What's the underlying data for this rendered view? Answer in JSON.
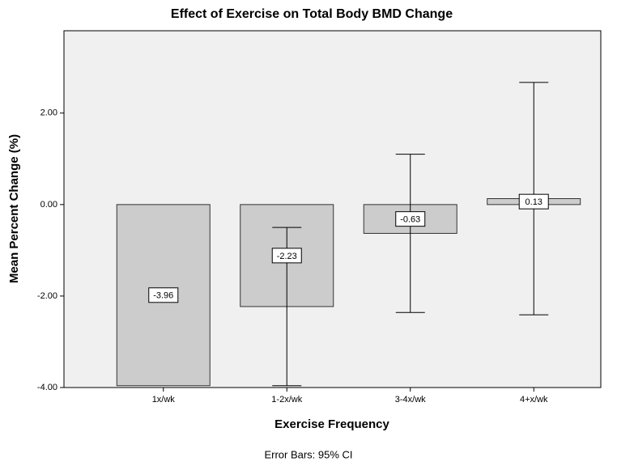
{
  "chart_data": {
    "type": "bar",
    "title": "Effect of Exercise on Total Body BMD Change",
    "x_label": "Exercise Frequency",
    "y_label": "Mean Percent Change (%)",
    "footnote": "Error Bars: 95% CI",
    "categories": [
      "1x/wk",
      "1-2x/wk",
      "3-4x/wk",
      "4+x/wk"
    ],
    "values": [
      -3.96,
      -2.23,
      -0.63,
      0.13
    ],
    "error_low": [
      null,
      -3.96,
      -2.36,
      -2.41
    ],
    "error_high": [
      null,
      -0.5,
      1.1,
      2.67
    ],
    "color": "#cccccc",
    "ylim": [
      -4,
      3.8
    ],
    "yticks": [
      {
        "value": -4,
        "label": "-4.00"
      },
      {
        "value": -2,
        "label": "-2.00"
      },
      {
        "value": 0,
        "label": "0.00"
      },
      {
        "value": 2,
        "label": "2.00"
      }
    ],
    "grid": false
  }
}
